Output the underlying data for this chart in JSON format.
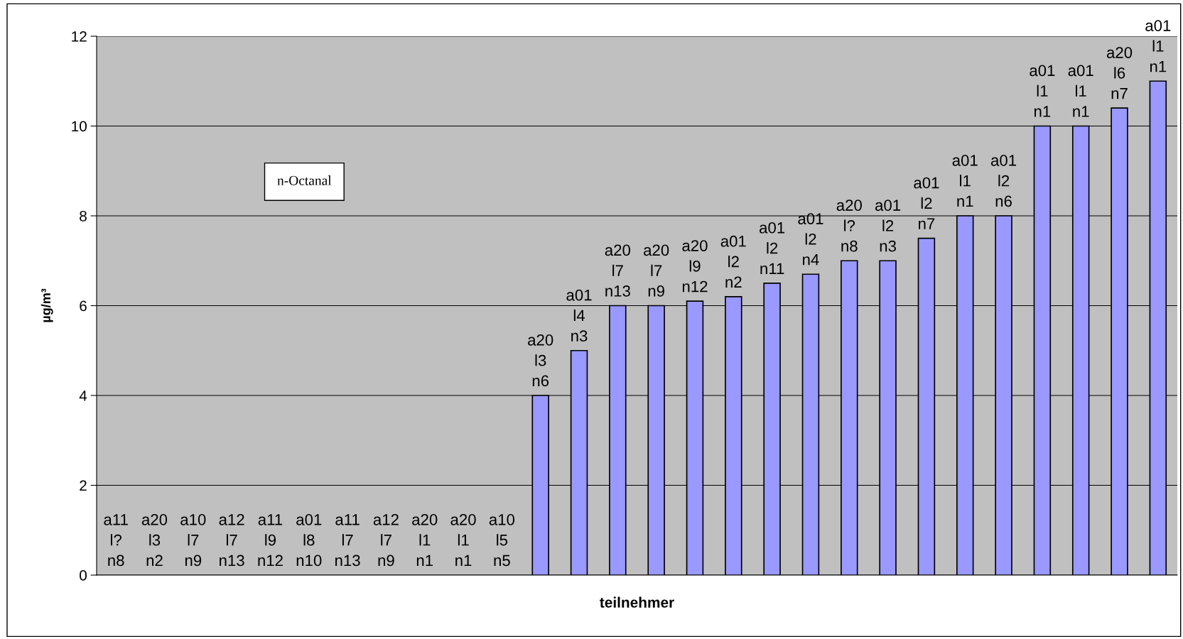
{
  "chart_data": {
    "type": "bar",
    "xlabel": "teilnehmer",
    "ylabel": "µg/m³",
    "annotations": [
      "n-Octanal"
    ],
    "categories": [
      null,
      null,
      null,
      null,
      null,
      null,
      null,
      null,
      null,
      null,
      null,
      null,
      null,
      null,
      null,
      null,
      null,
      null,
      null,
      null,
      null,
      null,
      null,
      null,
      null,
      null,
      null,
      null
    ],
    "values": [
      0,
      0,
      0,
      0,
      0,
      0,
      0,
      0,
      0,
      0,
      0,
      4,
      5,
      6,
      6,
      6.1,
      6.2,
      6.5,
      6.7,
      7,
      7,
      7.5,
      8,
      8,
      10,
      10,
      10.4,
      11
    ],
    "value_labels": [
      "a11\nl?\nn8",
      "a20\nl3\nn2",
      "a10\nl7\nn9",
      "a12\nl7\nn13",
      "a11\nl9\nn12",
      "a01\nl8\nn10",
      "a11\nl7\nn13",
      "a12\nl7\nn9",
      "a20\nl1\nn1",
      "a20\nl1\nn1",
      "a10\nl5\nn5",
      "a20\nl3\nn6",
      "a01\nl4\nn3",
      "a20\nl7\nn13",
      "a20\nl7\nn9",
      "a20\nl9\nn12",
      "a01\nl2\nn2",
      "a01\nl2\nn11",
      "a01\nl2\nn4",
      "a20\nl?\nn8",
      "a01\nl2\nn3",
      "a01\nl2\nn7",
      "a01\nl1\nn1",
      "a01\nl2\nn6",
      "a01\nl1\nn1",
      "a01\nl1\nn1",
      "a20\nl6\nn7",
      "a01\nl1\nn1"
    ],
    "color": "#9999ff",
    "ylim": [
      0,
      12
    ],
    "yticks": [
      0,
      2,
      4,
      6,
      8,
      10,
      12
    ],
    "grid": "y",
    "tick_labels": "y"
  }
}
